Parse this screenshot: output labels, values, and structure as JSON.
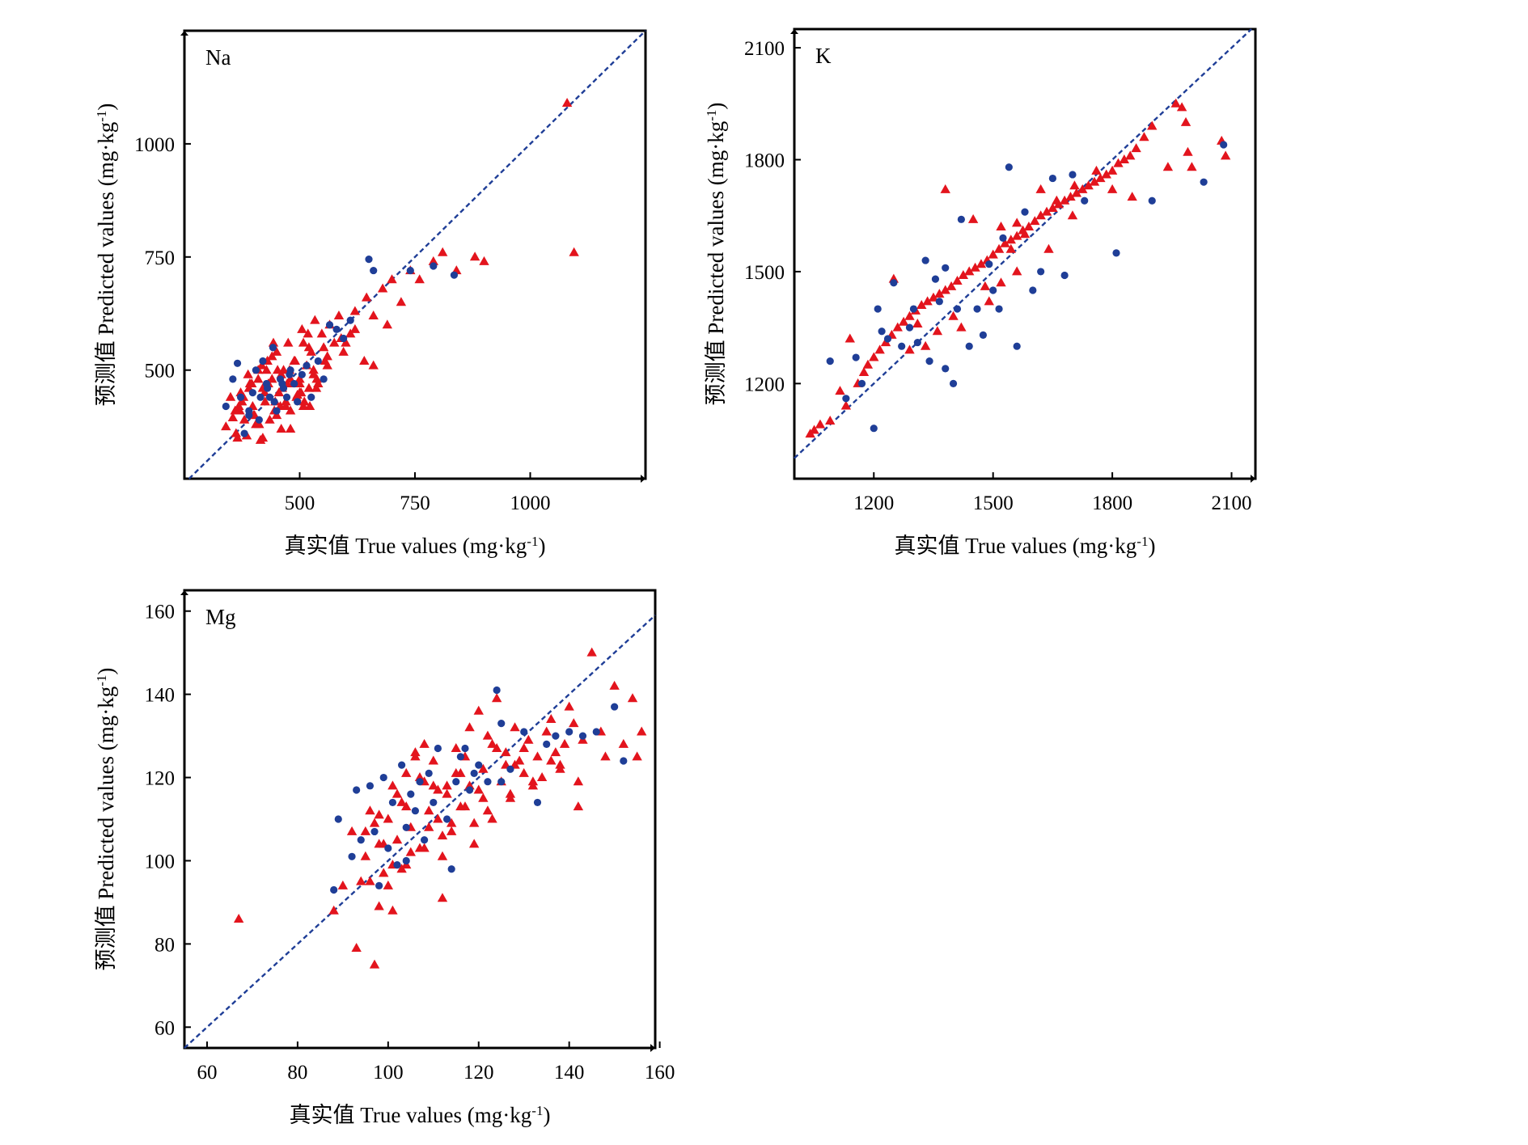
{
  "colors": {
    "calibration": "#e3141d",
    "validation": "#1f3e97",
    "axis": "#000000"
  },
  "chart_data": [
    {
      "type": "scatter",
      "panel_label": "Na",
      "xlabel": "真实值 True values (mg·kg",
      "ylabel": "预测值 Predicted values (mg·kg",
      "unit_exp": "-1",
      "unit_close": ")",
      "xlim": [
        250,
        1250
      ],
      "ylim": [
        260,
        1250
      ],
      "xticks": [
        500,
        750,
        1000
      ],
      "yticks": [
        500,
        750,
        1000
      ],
      "diagonal": true,
      "series": [
        {
          "marker": "triangle",
          "x": [
            340,
            355,
            362,
            370,
            378,
            385,
            392,
            398,
            405,
            410,
            415,
            420,
            425,
            430,
            435,
            440,
            445,
            450,
            455,
            460,
            465,
            470,
            475,
            480,
            485,
            490,
            495,
            500,
            505,
            510,
            515,
            520,
            525,
            530,
            540,
            548,
            555,
            565,
            575,
            585,
            595,
            610,
            350,
            372,
            388,
            402,
            418,
            432,
            447,
            462,
            478,
            493,
            508,
            522,
            537,
            552,
            368,
            396,
            424,
            452,
            480,
            508,
            536,
            380,
            440,
            500,
            560,
            400,
            460,
            520,
            365,
            375,
            412,
            428,
            443,
            458,
            473,
            488,
            503,
            518,
            533,
            600,
            620,
            645,
            660,
            680,
            700,
            720,
            740,
            760,
            790,
            810,
            840,
            880,
            900,
            1080,
            1095,
            420,
            450,
            480,
            360,
            390,
            410,
            430,
            470,
            500,
            530,
            560,
            590,
            620,
            640,
            660,
            690
          ],
          "y": [
            375,
            395,
            360,
            410,
            440,
            355,
            470,
            420,
            380,
            500,
            345,
            460,
            430,
            520,
            390,
            480,
            410,
            540,
            450,
            370,
            500,
            430,
            560,
            410,
            470,
            520,
            445,
            480,
            590,
            430,
            510,
            460,
            540,
            500,
            470,
            580,
            520,
            600,
            560,
            620,
            540,
            580,
            440,
            450,
            490,
            400,
            510,
            470,
            430,
            460,
            500,
            440,
            560,
            420,
            480,
            550,
            420,
            470,
            450,
            500,
            480,
            420,
            460,
            390,
            530,
            470,
            510,
            400,
            490,
            550,
            350,
            430,
            380,
            500,
            560,
            420,
            470,
            520,
            450,
            580,
            610,
            560,
            630,
            660,
            620,
            680,
            700,
            650,
            720,
            700,
            740,
            760,
            720,
            750,
            740,
            1090,
            760,
            350,
            400,
            370,
            410,
            460,
            480,
            520,
            420,
            450,
            490,
            530,
            570,
            590,
            520,
            510,
            600
          ]
        },
        {
          "marker": "circle",
          "x": [
            340,
            355,
            365,
            372,
            380,
            390,
            398,
            405,
            412,
            420,
            428,
            435,
            442,
            450,
            458,
            465,
            472,
            480,
            488,
            495,
            505,
            515,
            525,
            540,
            552,
            565,
            580,
            595,
            610,
            650,
            660,
            740,
            790,
            835,
            430,
            445,
            462,
            478,
            390,
            415
          ],
          "y": [
            420,
            480,
            515,
            440,
            360,
            410,
            450,
            500,
            390,
            520,
            470,
            440,
            550,
            410,
            480,
            460,
            440,
            500,
            470,
            430,
            490,
            510,
            440,
            520,
            480,
            600,
            590,
            570,
            610,
            745,
            720,
            720,
            730,
            710,
            460,
            430,
            470,
            490,
            400,
            440
          ]
        }
      ]
    },
    {
      "type": "scatter",
      "panel_label": "K",
      "xlabel": "真实值 True values (mg·kg",
      "ylabel": "预测值 Predicted values (mg·kg",
      "unit_exp": "-1",
      "unit_close": ")",
      "xlim": [
        1000,
        2160
      ],
      "ylim": [
        945,
        2150
      ],
      "xticks": [
        1200,
        1500,
        1800,
        2100
      ],
      "yticks": [
        1200,
        1500,
        1800,
        2100
      ],
      "diagonal": true,
      "series": [
        {
          "marker": "triangle",
          "x": [
            1040,
            1050,
            1065,
            1090,
            1115,
            1130,
            1140,
            1160,
            1175,
            1185,
            1200,
            1215,
            1230,
            1245,
            1260,
            1275,
            1290,
            1305,
            1320,
            1335,
            1350,
            1365,
            1380,
            1395,
            1410,
            1425,
            1440,
            1455,
            1470,
            1485,
            1500,
            1515,
            1530,
            1545,
            1560,
            1575,
            1590,
            1605,
            1620,
            1635,
            1650,
            1665,
            1680,
            1695,
            1710,
            1725,
            1740,
            1755,
            1770,
            1785,
            1800,
            1815,
            1830,
            1845,
            1860,
            1880,
            1900,
            1940,
            1960,
            1975,
            1990,
            2000,
            2075,
            2085,
            1380,
            1450,
            1480,
            1545,
            1560,
            1620,
            1250,
            1310,
            1330,
            1400,
            1520,
            1580,
            1660,
            1705,
            1760,
            1800,
            1850,
            1985,
            1420,
            1490,
            1520,
            1560,
            1640,
            1700,
            1290,
            1360
          ],
          "y": [
            1065,
            1075,
            1090,
            1100,
            1180,
            1140,
            1320,
            1200,
            1230,
            1250,
            1270,
            1290,
            1310,
            1330,
            1350,
            1365,
            1380,
            1395,
            1410,
            1420,
            1430,
            1440,
            1450,
            1460,
            1475,
            1490,
            1500,
            1510,
            1520,
            1530,
            1545,
            1560,
            1575,
            1585,
            1595,
            1610,
            1620,
            1635,
            1650,
            1660,
            1670,
            1680,
            1690,
            1700,
            1710,
            1720,
            1730,
            1740,
            1750,
            1760,
            1770,
            1790,
            1800,
            1810,
            1830,
            1860,
            1890,
            1780,
            1950,
            1940,
            1820,
            1780,
            1850,
            1810,
            1720,
            1640,
            1460,
            1560,
            1630,
            1720,
            1480,
            1360,
            1300,
            1380,
            1620,
            1600,
            1690,
            1730,
            1770,
            1720,
            1700,
            1900,
            1350,
            1420,
            1470,
            1500,
            1560,
            1650,
            1290,
            1340
          ],
          "shift_note": "noise"
        },
        {
          "marker": "circle",
          "x": [
            1090,
            1130,
            1155,
            1170,
            1200,
            1210,
            1235,
            1250,
            1270,
            1290,
            1300,
            1310,
            1330,
            1340,
            1355,
            1365,
            1380,
            1400,
            1410,
            1420,
            1440,
            1460,
            1475,
            1490,
            1500,
            1515,
            1525,
            1540,
            1560,
            1580,
            1600,
            1620,
            1650,
            1680,
            1700,
            1730,
            1810,
            1900,
            2030,
            2080,
            1220,
            1380
          ],
          "y": [
            1260,
            1160,
            1270,
            1200,
            1080,
            1400,
            1320,
            1470,
            1300,
            1350,
            1400,
            1310,
            1530,
            1260,
            1480,
            1420,
            1510,
            1200,
            1400,
            1640,
            1300,
            1400,
            1330,
            1520,
            1450,
            1400,
            1590,
            1780,
            1300,
            1660,
            1450,
            1500,
            1750,
            1490,
            1760,
            1690,
            1550,
            1690,
            1740,
            1840,
            1340,
            1240
          ]
        }
      ]
    },
    {
      "type": "scatter",
      "panel_label": "Mg",
      "xlabel": "真实值 True values (mg·kg",
      "ylabel": "预测值 Predicted values (mg·kg",
      "unit_exp": "-1",
      "unit_close": ")",
      "xlim": [
        55,
        159
      ],
      "ylim": [
        55,
        165
      ],
      "xticks": [
        60,
        80,
        100,
        120,
        140,
        160
      ],
      "yticks": [
        60,
        80,
        100,
        120,
        140,
        160
      ],
      "diagonal": true,
      "series": [
        {
          "marker": "triangle",
          "x": [
            67,
            88,
            90,
            92,
            94,
            95,
            96,
            97,
            98,
            99,
            100,
            101,
            101,
            102,
            103,
            104,
            105,
            106,
            107,
            108,
            109,
            110,
            111,
            112,
            113,
            114,
            115,
            116,
            117,
            118,
            119,
            120,
            121,
            122,
            123,
            124,
            125,
            126,
            127,
            128,
            129,
            130,
            131,
            132,
            133,
            134,
            135,
            136,
            137,
            138,
            139,
            140,
            141,
            142,
            143,
            145,
            147,
            148,
            150,
            152,
            154,
            155,
            156,
            93,
            97,
            100,
            105,
            112,
            117,
            98,
            102,
            108,
            114,
            120,
            126,
            132,
            138,
            96,
            104,
            110,
            118,
            124,
            130,
            136,
            142,
            99,
            106,
            113,
            121,
            128,
            95,
            103,
            109,
            115,
            122,
            98,
            101,
            107,
            111,
            116,
            119,
            123,
            127,
            104,
            108,
            112
          ],
          "y": [
            86,
            88,
            94,
            107,
            95,
            101,
            112,
            109,
            104,
            97,
            110,
            118,
            88,
            105,
            114,
            99,
            108,
            126,
            120,
            103,
            112,
            124,
            110,
            101,
            116,
            107,
            121,
            113,
            125,
            118,
            104,
            117,
            122,
            130,
            110,
            127,
            119,
            123,
            115,
            132,
            124,
            121,
            129,
            118,
            125,
            120,
            131,
            134,
            126,
            123,
            128,
            137,
            133,
            113,
            129,
            150,
            131,
            125,
            142,
            128,
            139,
            125,
            131,
            79,
            75,
            94,
            102,
            91,
            113,
            89,
            116,
            128,
            109,
            136,
            126,
            119,
            122,
            95,
            121,
            118,
            132,
            139,
            127,
            124,
            119,
            104,
            125,
            118,
            115,
            123,
            107,
            98,
            108,
            127,
            112,
            111,
            99,
            103,
            117,
            121,
            109,
            128,
            116,
            113,
            119,
            106
          ],
          "shift_note": "noise"
        },
        {
          "marker": "circle",
          "x": [
            88,
            89,
            92,
            93,
            94,
            96,
            97,
            99,
            100,
            101,
            102,
            103,
            104,
            105,
            106,
            107,
            108,
            109,
            110,
            111,
            113,
            114,
            115,
            117,
            118,
            119,
            120,
            122,
            124,
            125,
            127,
            130,
            133,
            135,
            137,
            140,
            143,
            146,
            150,
            152,
            98,
            104,
            116,
            125
          ],
          "y": [
            93,
            110,
            101,
            117,
            105,
            118,
            107,
            120,
            103,
            114,
            99,
            123,
            108,
            116,
            112,
            119,
            105,
            121,
            114,
            127,
            110,
            98,
            119,
            127,
            117,
            121,
            123,
            119,
            141,
            133,
            122,
            131,
            114,
            128,
            130,
            131,
            130,
            131,
            137,
            124,
            94,
            100,
            125,
            119
          ]
        }
      ]
    }
  ]
}
